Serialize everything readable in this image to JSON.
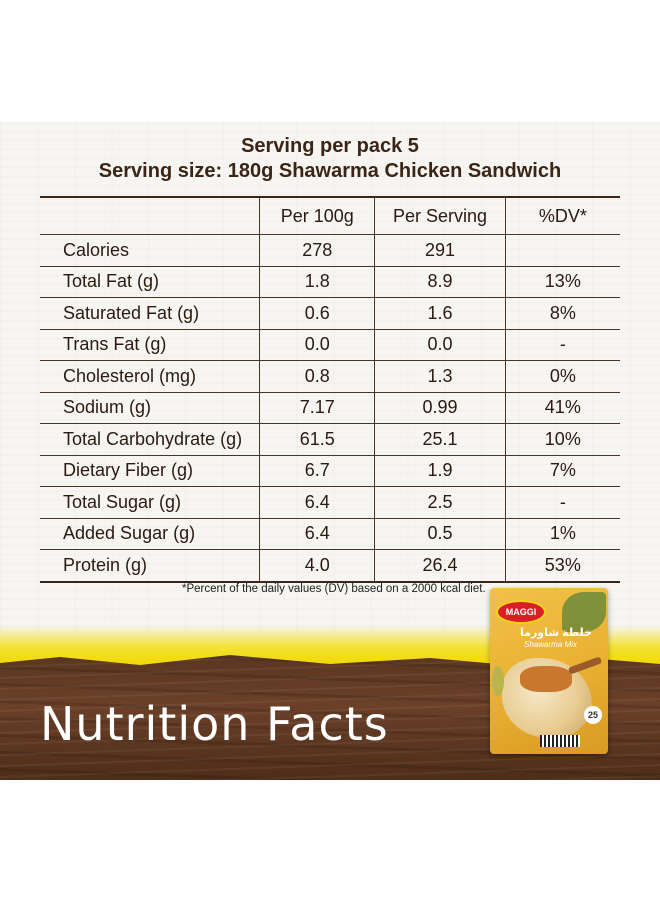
{
  "header": {
    "line1": "Serving per pack 5",
    "line2": "Serving size: 180g Shawarma Chicken Sandwich"
  },
  "table": {
    "columns": [
      "",
      "Per 100g",
      "Per Serving",
      "%DV*"
    ],
    "rows": [
      {
        "label": "Calories",
        "per100": "278",
        "serving": "291",
        "dv": ""
      },
      {
        "label": "Total Fat (g)",
        "per100": "1.8",
        "serving": "8.9",
        "dv": "13%"
      },
      {
        "label": "Saturated Fat (g)",
        "per100": "0.6",
        "serving": "1.6",
        "dv": "8%"
      },
      {
        "label": "Trans Fat (g)",
        "per100": "0.0",
        "serving": "0.0",
        "dv": "-"
      },
      {
        "label": "Cholesterol (mg)",
        "per100": "0.8",
        "serving": "1.3",
        "dv": "0%"
      },
      {
        "label": "Sodium (g)",
        "per100": "7.17",
        "serving": "0.99",
        "dv": "41%"
      },
      {
        "label": "Total Carbohydrate (g)",
        "per100": "61.5",
        "serving": "25.1",
        "dv": "10%"
      },
      {
        "label": "Dietary Fiber (g)",
        "per100": "6.7",
        "serving": "1.9",
        "dv": "7%"
      },
      {
        "label": "Total Sugar (g)",
        "per100": "6.4",
        "serving": "2.5",
        "dv": "-"
      },
      {
        "label": "Added Sugar (g)",
        "per100": "6.4",
        "serving": "0.5",
        "dv": "1%"
      },
      {
        "label": "Protein (g)",
        "per100": "4.0",
        "serving": "26.4",
        "dv": "53%"
      }
    ]
  },
  "footnote": "*Percent of the daily values (DV) based on a 2000 kcal diet.",
  "title": "Nutrition Facts",
  "product": {
    "brand": "MAGGI",
    "name_ar": "خلطة شاورما",
    "name_en": "Shawarma Mix",
    "badge": "25"
  },
  "colors": {
    "text_brown": "#3a2517",
    "wood": "#5a3620",
    "yellow": "#f1d800",
    "maggi_red": "#d91f26"
  }
}
